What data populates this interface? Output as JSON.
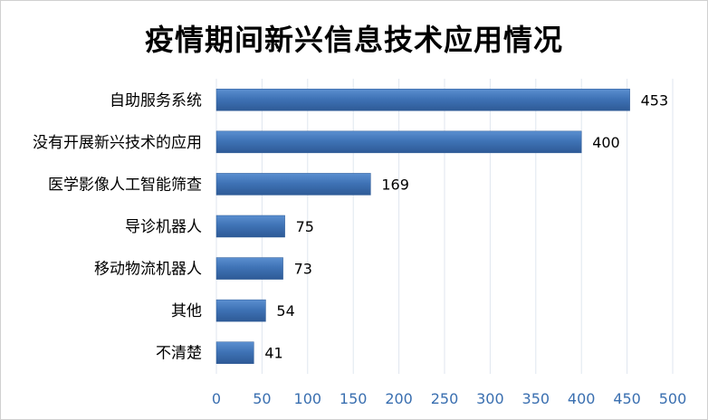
{
  "chart_data": {
    "type": "bar",
    "orientation": "horizontal",
    "title": "疫情期间新兴信息技术应用情况",
    "categories": [
      "自助服务系统",
      "没有开展新兴技术的应用",
      "医学影像人工智能筛查",
      "导诊机器人",
      "移动物流机器人",
      "其他",
      "不清楚"
    ],
    "values": [
      453,
      400,
      169,
      75,
      73,
      54,
      41
    ],
    "xlim": [
      0,
      500
    ],
    "x_ticks": [
      "0",
      "50",
      "100",
      "150",
      "200",
      "250",
      "300",
      "350",
      "400",
      "450",
      "500"
    ],
    "grid": true,
    "data_labels": true,
    "bar_color": "#3f73b6",
    "gridline_color": "#dfe6ef",
    "tick_color": "#3a6fb0"
  }
}
